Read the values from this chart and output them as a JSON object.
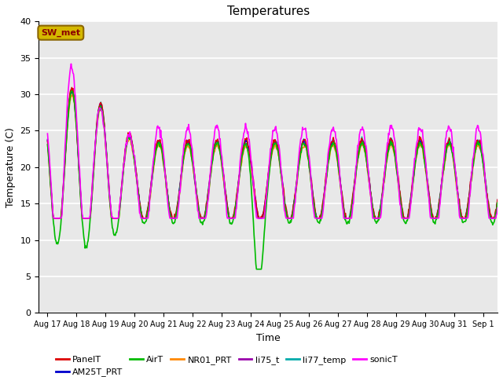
{
  "title": "Temperatures",
  "xlabel": "Time",
  "ylabel": "Temperature (C)",
  "ylim": [
    0,
    40
  ],
  "background_color": "#e8e8e8",
  "grid_color": "white",
  "annotation_label": "SW_met",
  "annotation_text_color": "#8b0000",
  "annotation_box_color": "#d4b800",
  "annotation_box_edge": "#8b6500",
  "series": {
    "PanelT": {
      "color": "#dd0000",
      "lw": 1.0
    },
    "AM25T_PRT": {
      "color": "#0000cc",
      "lw": 1.0
    },
    "AirT": {
      "color": "#00bb00",
      "lw": 1.2
    },
    "NR01_PRT": {
      "color": "#ff8800",
      "lw": 1.0
    },
    "li75_t": {
      "color": "#9900aa",
      "lw": 1.0
    },
    "li77_temp": {
      "color": "#00aaaa",
      "lw": 1.0
    },
    "sonicT": {
      "color": "#ff00ff",
      "lw": 1.2
    }
  },
  "xtick_labels": [
    "Aug 17",
    "Aug 18",
    "Aug 19",
    "Aug 20",
    "Aug 21",
    "Aug 22",
    "Aug 23",
    "Aug 24",
    "Aug 25",
    "Aug 26",
    "Aug 27",
    "Aug 28",
    "Aug 29",
    "Aug 30",
    "Aug 31",
    "Sep 1"
  ],
  "xtick_positions": [
    0,
    1,
    2,
    3,
    4,
    5,
    6,
    7,
    8,
    9,
    10,
    11,
    12,
    13,
    14,
    15
  ],
  "ytick_positions": [
    0,
    5,
    10,
    15,
    20,
    25,
    30,
    35,
    40
  ],
  "figsize": [
    6.4,
    4.8
  ],
  "dpi": 100
}
